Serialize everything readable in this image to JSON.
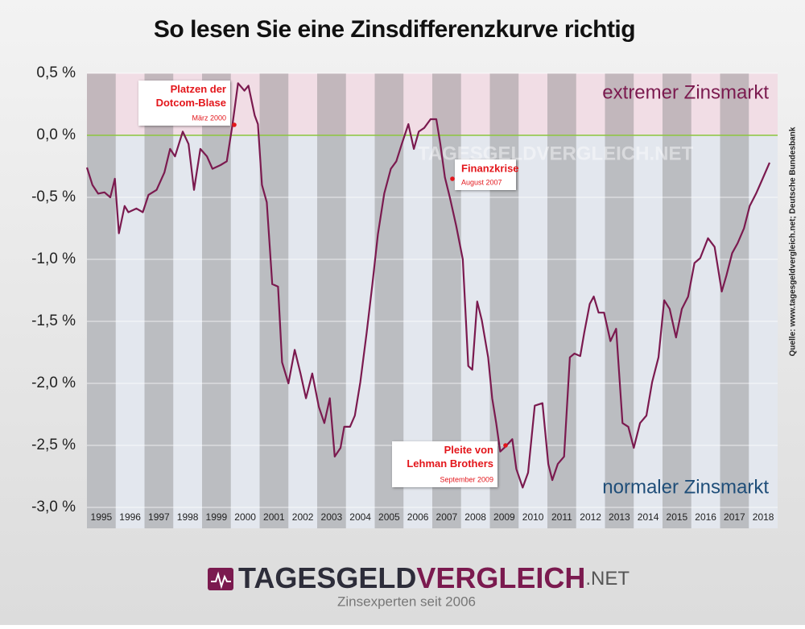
{
  "chart_data": {
    "type": "line",
    "title": "So lesen Sie eine Zinsdifferenzkurve richtig",
    "color": "#7b1a4f",
    "x": [
      1995.0,
      1995.19,
      1995.39,
      1995.61,
      1995.81,
      1995.97,
      1996.11,
      1996.31,
      1996.44,
      1996.72,
      1996.94,
      1997.14,
      1997.42,
      1997.69,
      1997.89,
      1998.06,
      1998.33,
      1998.53,
      1998.72,
      1998.94,
      1999.17,
      1999.36,
      1999.64,
      1999.86,
      2000.06,
      2000.25,
      2000.47,
      2000.61,
      2000.83,
      2000.94,
      2001.08,
      2001.25,
      2001.44,
      2001.64,
      2001.78,
      2002.0,
      2002.22,
      2002.42,
      2002.61,
      2002.83,
      2003.06,
      2003.25,
      2003.44,
      2003.61,
      2003.81,
      2003.94,
      2004.14,
      2004.31,
      2004.5,
      2004.72,
      2004.92,
      2005.11,
      2005.33,
      2005.56,
      2005.75,
      2005.94,
      2006.17,
      2006.36,
      2006.53,
      2006.72,
      2006.94,
      2007.14,
      2007.28,
      2007.44,
      2007.61,
      2007.83,
      2008.06,
      2008.25,
      2008.39,
      2008.56,
      2008.72,
      2008.94,
      2009.08,
      2009.22,
      2009.36,
      2009.5,
      2009.78,
      2009.92,
      2010.14,
      2010.33,
      2010.56,
      2010.83,
      2011.03,
      2011.17,
      2011.36,
      2011.58,
      2011.78,
      2011.94,
      2012.14,
      2012.28,
      2012.47,
      2012.61,
      2012.78,
      2012.97,
      2013.19,
      2013.39,
      2013.61,
      2013.81,
      2014.0,
      2014.22,
      2014.44,
      2014.64,
      2014.86,
      2015.06,
      2015.25,
      2015.47,
      2015.67,
      2015.89,
      2016.11,
      2016.31,
      2016.58,
      2016.81,
      2017.06,
      2017.22,
      2017.42,
      2017.61,
      2017.83,
      2018.03,
      2018.25,
      2018.44,
      2018.72
    ],
    "values": [
      -0.26,
      -0.4,
      -0.47,
      -0.46,
      -0.5,
      -0.35,
      -0.79,
      -0.57,
      -0.62,
      -0.59,
      -0.62,
      -0.48,
      -0.44,
      -0.3,
      -0.11,
      -0.17,
      0.03,
      -0.07,
      -0.44,
      -0.11,
      -0.17,
      -0.27,
      -0.24,
      -0.21,
      0.09,
      0.42,
      0.36,
      0.4,
      0.16,
      0.09,
      -0.4,
      -0.54,
      -1.2,
      -1.22,
      -1.83,
      -2.0,
      -1.73,
      -1.92,
      -2.12,
      -1.92,
      -2.19,
      -2.32,
      -2.12,
      -2.59,
      -2.52,
      -2.35,
      -2.35,
      -2.26,
      -1.99,
      -1.59,
      -1.2,
      -0.8,
      -0.47,
      -0.27,
      -0.21,
      -0.07,
      0.09,
      -0.11,
      0.03,
      0.06,
      0.13,
      0.13,
      -0.07,
      -0.34,
      -0.5,
      -0.73,
      -1.0,
      -1.86,
      -1.89,
      -1.34,
      -1.49,
      -1.79,
      -2.12,
      -2.32,
      -2.55,
      -2.52,
      -2.45,
      -2.69,
      -2.84,
      -2.72,
      -2.18,
      -2.16,
      -2.65,
      -2.78,
      -2.65,
      -2.59,
      -1.79,
      -1.76,
      -1.78,
      -1.59,
      -1.36,
      -1.3,
      -1.43,
      -1.43,
      -1.66,
      -1.56,
      -2.32,
      -2.35,
      -2.52,
      -2.32,
      -2.26,
      -1.99,
      -1.79,
      -1.33,
      -1.4,
      -1.63,
      -1.4,
      -1.3,
      -1.03,
      -0.99,
      -0.83,
      -0.9,
      -1.26,
      -1.13,
      -0.95,
      -0.87,
      -0.75,
      -0.57,
      -0.47,
      -0.37,
      -0.22
    ],
    "xlim": [
      1995,
      2019
    ],
    "xticks": [
      1995,
      1996,
      1997,
      1998,
      1999,
      2000,
      2001,
      2002,
      2003,
      2004,
      2005,
      2006,
      2007,
      2008,
      2009,
      2010,
      2011,
      2012,
      2013,
      2014,
      2015,
      2016,
      2017,
      2018
    ],
    "ylim": [
      -3.0,
      0.5
    ],
    "yticks": [
      {
        "value": 0.5,
        "label": "0,5 %"
      },
      {
        "value": 0.0,
        "label": "0,0 %"
      },
      {
        "value": -0.5,
        "label": "-0,5 %"
      },
      {
        "value": -1.0,
        "label": "-1,0 %"
      },
      {
        "value": -1.5,
        "label": "-1,5 %"
      },
      {
        "value": -2.0,
        "label": "-2,0 %"
      },
      {
        "value": -2.5,
        "label": "-2,5 %"
      },
      {
        "value": -3.0,
        "label": "-3,0 %"
      }
    ],
    "grid": true,
    "zones": {
      "upper": "extremer Zinsmarkt",
      "lower": "normaler Zinsmarkt"
    },
    "annotations": [
      {
        "title": "Platzen der Dotcom-Blase",
        "date": "März 2000"
      },
      {
        "title": "Finanzkrise",
        "date": "August 2007"
      },
      {
        "title": "Pleite von Lehman Brothers",
        "date": "September 2009"
      }
    ],
    "source": "Quelle: www.tagesgeldvergleich.net;  Deutsche Bundesbank",
    "watermark": "TAGESGELDVERGLEICH.NET"
  },
  "logo": {
    "part1": "TAGESGELD",
    "part2": "VERGLEICH",
    "part3": ".NET",
    "tagline": "Zinsexperten seit 2006"
  }
}
